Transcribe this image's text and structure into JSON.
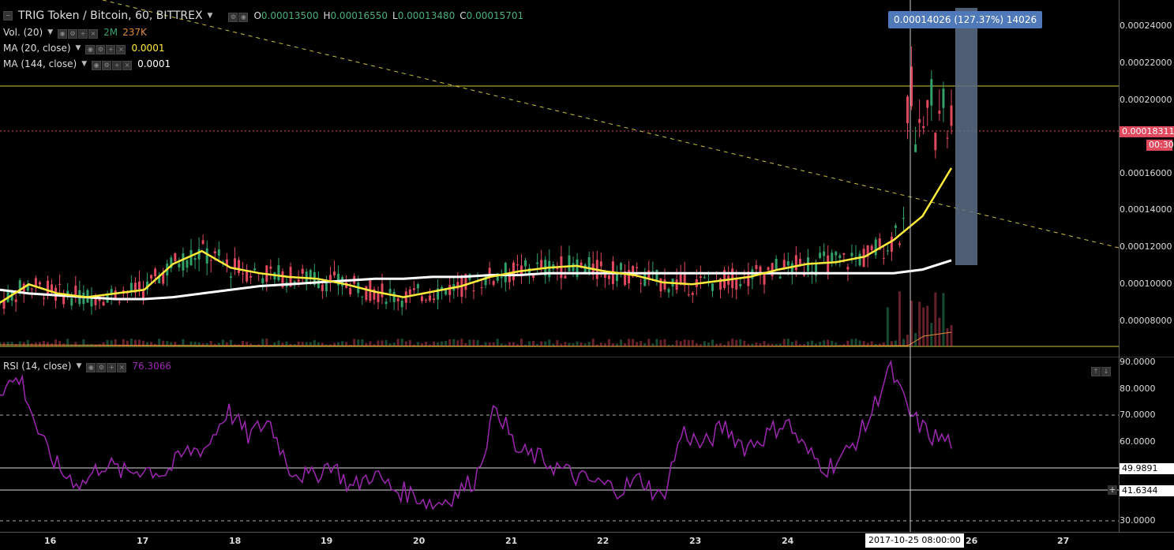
{
  "legend": {
    "title": "TRIG Token / Bitcoin, 60, BITTREX",
    "ohlc": [
      {
        "k": "O",
        "v": "0.00013500"
      },
      {
        "k": "H",
        "v": "0.00016550"
      },
      {
        "k": "L",
        "v": "0.00013480"
      },
      {
        "k": "C",
        "v": "0.00015701"
      }
    ],
    "vol_label": "Vol. (20)",
    "vol_value1": "2M",
    "vol_value2": "237K",
    "ma20_label": "MA (20, close)",
    "ma20_value": "0.0001",
    "ma144_label": "MA (144, close)",
    "ma144_value": "0.0001",
    "rsi_label": "RSI (14, close)",
    "rsi_value": "76.3066"
  },
  "colors": {
    "up": "#33a06a",
    "down": "#e0495e",
    "ma20": "#ffeb3b",
    "ma144": "#ffffff",
    "rsi": "#9c27b0",
    "trendline": "#c9c33a",
    "accent": "#4f79b8"
  },
  "icons": [
    "collapse-icon",
    "settings-icon",
    "eye-icon",
    "plus-icon",
    "close-icon"
  ],
  "price_axis": [
    "0.00024000",
    "0.00022000",
    "0.00020000",
    "0.00016000",
    "0.00014000",
    "0.00012000",
    "0.00010000",
    "0.00008000"
  ],
  "last_price": {
    "value": "0.00018311",
    "countdown": "00:30"
  },
  "rsi_axis": [
    "90.0000",
    "80.0000",
    "70.0000",
    "60.0000",
    "30.0000"
  ],
  "rsi_tags": [
    "49.9891",
    "41.6344"
  ],
  "time_axis": [
    "16",
    "17",
    "18",
    "19",
    "20",
    "21",
    "22",
    "23",
    "24",
    "26",
    "27"
  ],
  "crosshair_time": "2017-10-25 08:00:00",
  "measure_tooltip": "0.00014026 (127.37%) 14026",
  "chart_data": {
    "type": "line",
    "series": [
      {
        "name": "MA (20, close)",
        "values": [
          9e-05,
          0.0001,
          9.5e-05,
          9.3e-05,
          9.5e-05,
          9.7e-05,
          0.000111,
          0.000118,
          0.000109,
          0.000106,
          0.000104,
          0.000103,
          0.0001,
          9.6e-05,
          9.3e-05,
          9.6e-05,
          9.9e-05,
          0.000104,
          0.000107,
          0.000109,
          0.00011,
          0.000107,
          0.000105,
          0.000101,
          0.0001,
          0.000102,
          0.000104,
          0.000108,
          0.000111,
          0.000112,
          0.000115,
          0.000124,
          0.000137,
          0.000163
        ]
      },
      {
        "name": "MA (144, close)",
        "values": [
          9.7e-05,
          9.5e-05,
          9.4e-05,
          9.3e-05,
          9.2e-05,
          9.2e-05,
          9.3e-05,
          9.5e-05,
          9.7e-05,
          9.9e-05,
          0.0001,
          0.000101,
          0.000102,
          0.000103,
          0.000103,
          0.000104,
          0.000104,
          0.000105,
          0.000105,
          0.000106,
          0.000106,
          0.000106,
          0.000106,
          0.000106,
          0.000106,
          0.000106,
          0.000106,
          0.000106,
          0.000106,
          0.000106,
          0.000106,
          0.000106,
          0.000108,
          0.000113
        ]
      },
      {
        "name": "RSI (14, close)",
        "values": [
          80,
          84,
          60,
          48,
          44,
          52,
          48,
          50,
          48,
          56,
          58,
          72,
          62,
          68,
          50,
          46,
          52,
          42,
          48,
          42,
          40,
          36,
          40,
          46,
          74,
          56,
          54,
          50,
          46,
          44,
          42,
          46,
          38,
          64,
          58,
          66,
          58,
          62,
          68,
          56,
          50,
          56,
          68,
          88,
          70,
          62,
          60
        ]
      }
    ],
    "ylim": [
      6e-05,
      0.00025
    ]
  }
}
